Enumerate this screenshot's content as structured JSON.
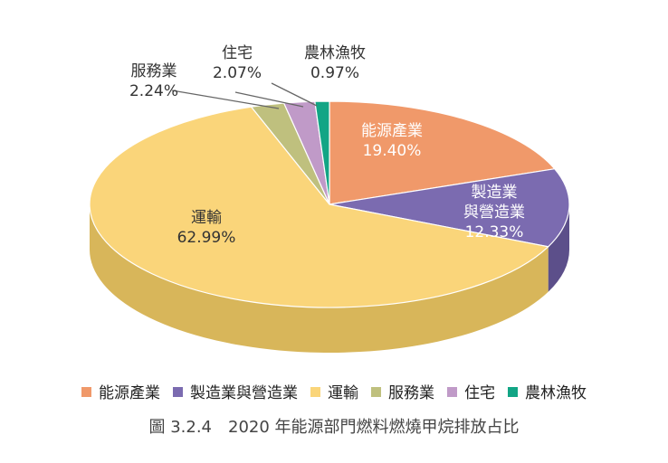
{
  "chart_data": {
    "type": "pie",
    "style": "3d",
    "title": "圖 3.2.4　2020 年能源部門燃料燃燒甲烷排放占比",
    "legend_position": "bottom",
    "slices": [
      {
        "name": "能源產業",
        "label": [
          "能源產業"
        ],
        "value": 19.4,
        "display": "19.40%",
        "color": "#F0996A",
        "side": "#C97A50"
      },
      {
        "name": "製造業與營造業",
        "label": [
          "製造業",
          "與營造業"
        ],
        "value": 12.33,
        "display": "12.33%",
        "color": "#7B6BB0",
        "side": "#5C4F8A"
      },
      {
        "name": "運輸",
        "label": [
          "運輸"
        ],
        "value": 62.99,
        "display": "62.99%",
        "color": "#FAD57A",
        "side": "#D8B65A"
      },
      {
        "name": "服務業",
        "label": [
          "服務業"
        ],
        "value": 2.24,
        "display": "2.24%",
        "color": "#BFC07E",
        "side": "#9C9D5E"
      },
      {
        "name": "住宅",
        "label": [
          "住宅"
        ],
        "value": 2.07,
        "display": "2.07%",
        "color": "#C09AC8",
        "side": "#9B78A3"
      },
      {
        "name": "農林漁牧",
        "label": [
          "農林漁牧"
        ],
        "value": 0.97,
        "display": "0.97%",
        "color": "#12A585",
        "side": "#0C7F66"
      }
    ]
  }
}
